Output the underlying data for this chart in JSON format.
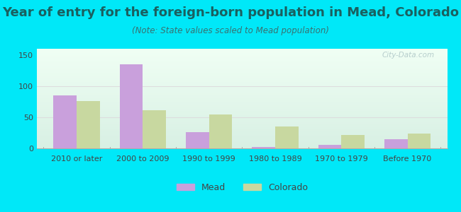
{
  "title": "Year of entry for the foreign-born population in Mead, Colorado",
  "subtitle": "(Note: State values scaled to Mead population)",
  "categories": [
    "2010 or later",
    "2000 to 2009",
    "1990 to 1999",
    "1980 to 1989",
    "1970 to 1979",
    "Before 1970"
  ],
  "mead_values": [
    85,
    135,
    26,
    2,
    6,
    15
  ],
  "colorado_values": [
    76,
    61,
    54,
    35,
    21,
    24
  ],
  "mead_color": "#c9a0dc",
  "colorado_color": "#c8d8a0",
  "background_outer": "#00e8f8",
  "ylim": [
    0,
    160
  ],
  "yticks": [
    0,
    50,
    100,
    150
  ],
  "bar_width": 0.35,
  "title_fontsize": 13,
  "subtitle_fontsize": 8.5,
  "tick_fontsize": 8,
  "legend_fontsize": 9,
  "watermark_text": "City-Data.com",
  "grid_color": "#dddddd",
  "plot_bg_top": "#f0fff4",
  "plot_bg_bottom": "#d8f0e4"
}
